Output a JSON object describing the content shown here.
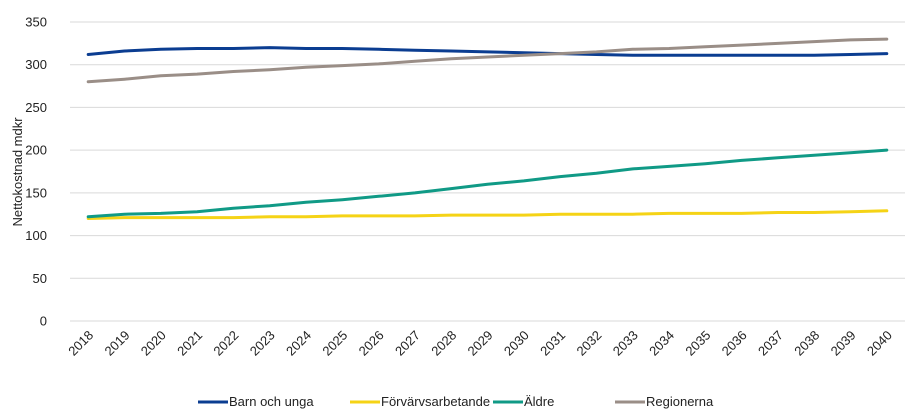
{
  "chart_data": {
    "type": "line",
    "ylabel": "Nettokostnad mdkr",
    "xlabel": "",
    "title": "",
    "ylim": [
      0,
      350
    ],
    "yticks": [
      0,
      50,
      100,
      150,
      200,
      250,
      300,
      350
    ],
    "grid": "horizontal",
    "legend_position": "bottom",
    "categories": [
      "2018",
      "2019",
      "2020",
      "2021",
      "2022",
      "2023",
      "2024",
      "2025",
      "2026",
      "2027",
      "2028",
      "2029",
      "2030",
      "2031",
      "2032",
      "2033",
      "2034",
      "2035",
      "2036",
      "2037",
      "2038",
      "2039",
      "2040"
    ],
    "series": [
      {
        "name": "Barn och unga",
        "color": "#0B3D91",
        "values": [
          312,
          316,
          318,
          319,
          319,
          320,
          319,
          319,
          318,
          317,
          316,
          315,
          314,
          313,
          312,
          311,
          311,
          311,
          311,
          311,
          311,
          312,
          313
        ]
      },
      {
        "name": "Förvärvsarbetande",
        "color": "#F5D316",
        "values": [
          120,
          121,
          121,
          121,
          121,
          122,
          122,
          123,
          123,
          123,
          124,
          124,
          124,
          125,
          125,
          125,
          126,
          126,
          126,
          127,
          127,
          128,
          129
        ]
      },
      {
        "name": "Äldre",
        "color": "#109A86",
        "values": [
          122,
          125,
          126,
          128,
          132,
          135,
          139,
          142,
          146,
          150,
          155,
          160,
          164,
          169,
          173,
          178,
          181,
          184,
          188,
          191,
          194,
          197,
          200
        ]
      },
      {
        "name": "Regionerna",
        "color": "#9A8E87",
        "values": [
          280,
          283,
          287,
          289,
          292,
          294,
          297,
          299,
          301,
          304,
          307,
          309,
          311,
          313,
          315,
          318,
          319,
          321,
          323,
          325,
          327,
          329,
          330
        ]
      }
    ]
  }
}
